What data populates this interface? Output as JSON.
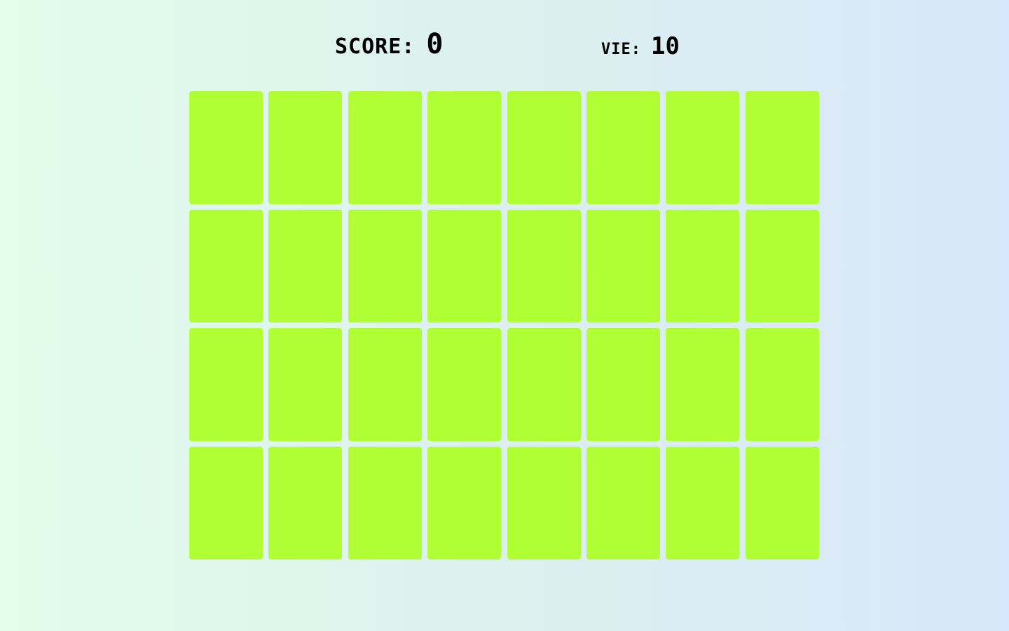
{
  "hud": {
    "score_label": "SCORE:",
    "score_value": "0",
    "lives_label": "VIE:",
    "lives_value": "10"
  },
  "board": {
    "rows": 4,
    "columns": 8,
    "card_back_color": "#b0ff34"
  }
}
